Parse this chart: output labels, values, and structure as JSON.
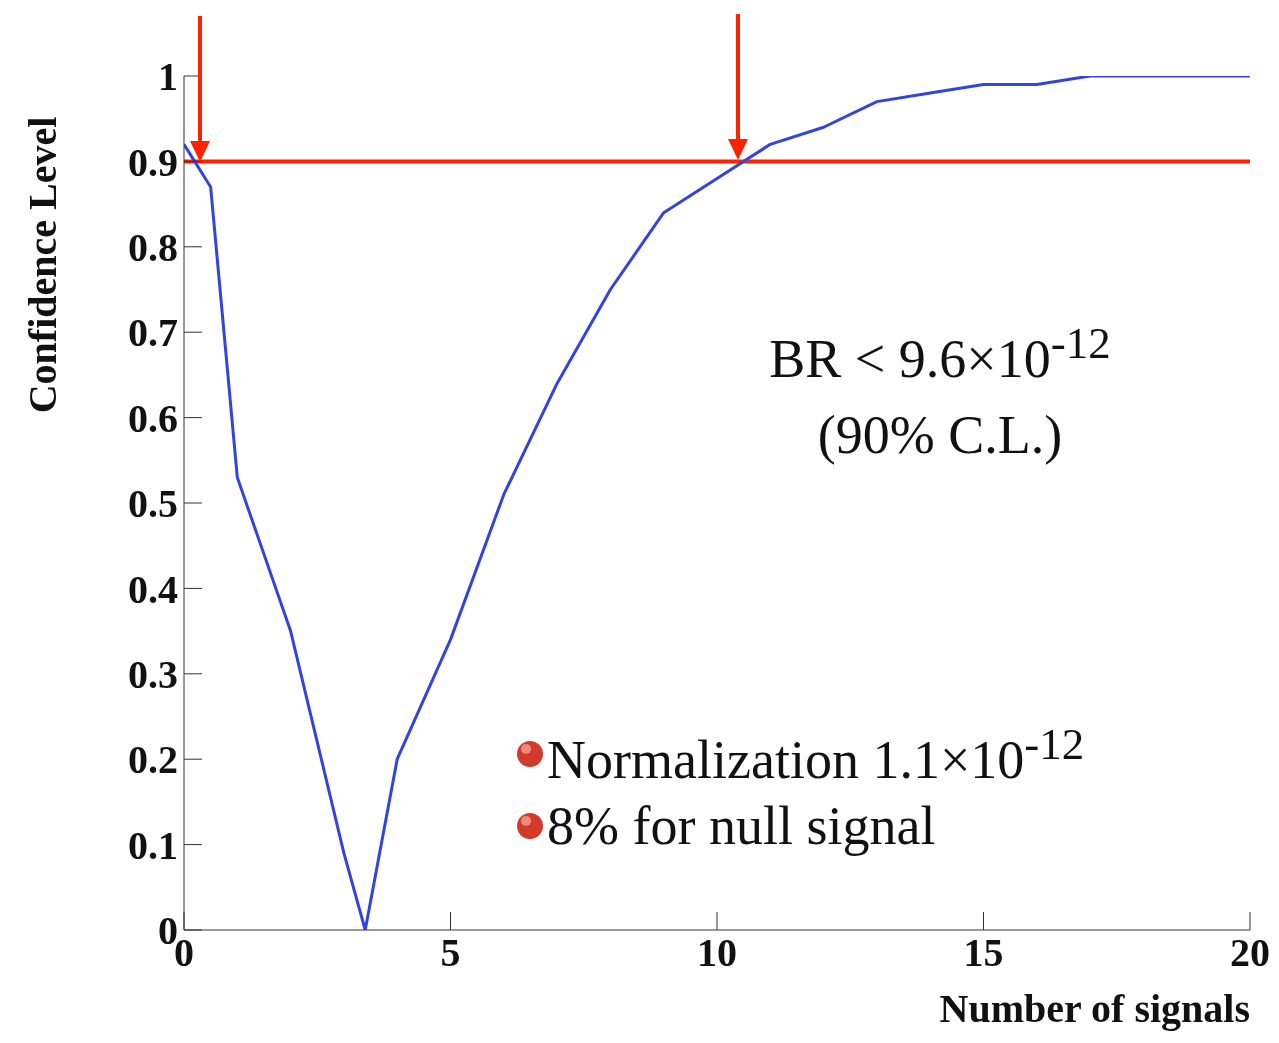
{
  "chart_data": {
    "type": "line",
    "xlabel": "Number of signals",
    "ylabel": "Confidence Level",
    "x": [
      0,
      0.5,
      1,
      2,
      3,
      3.4,
      4,
      5,
      6,
      7,
      8,
      9,
      10,
      11,
      12,
      13,
      14,
      15,
      16,
      17,
      18,
      20
    ],
    "series": [
      {
        "color": "#3344dd",
        "values": [
          0.92,
          0.87,
          0.53,
          0.35,
          0.09,
          0,
          0.2,
          0.34,
          0.51,
          0.64,
          0.75,
          0.84,
          0.88,
          0.92,
          0.94,
          0.97,
          0.98,
          0.99,
          0.99,
          1,
          1,
          1
        ]
      }
    ],
    "xlim": [
      0,
      20
    ],
    "xticks": [
      0,
      5,
      10,
      15,
      20
    ],
    "ylim": [
      0,
      1
    ],
    "yticks": [
      0,
      0.1,
      0.2,
      0.3,
      0.4,
      0.5,
      0.6,
      0.7,
      0.8,
      0.9,
      1
    ],
    "ref_lines": [
      {
        "axis": "y",
        "value": 0.9,
        "color": "#ff2200"
      }
    ],
    "annotations": [
      "BR < 9.6×10$^{-12}$ (90% C.L.)",
      "Normalization 1.1×10$^{-12}$",
      "8% for null signal"
    ],
    "marker": "none",
    "line_style": "solid"
  }
}
